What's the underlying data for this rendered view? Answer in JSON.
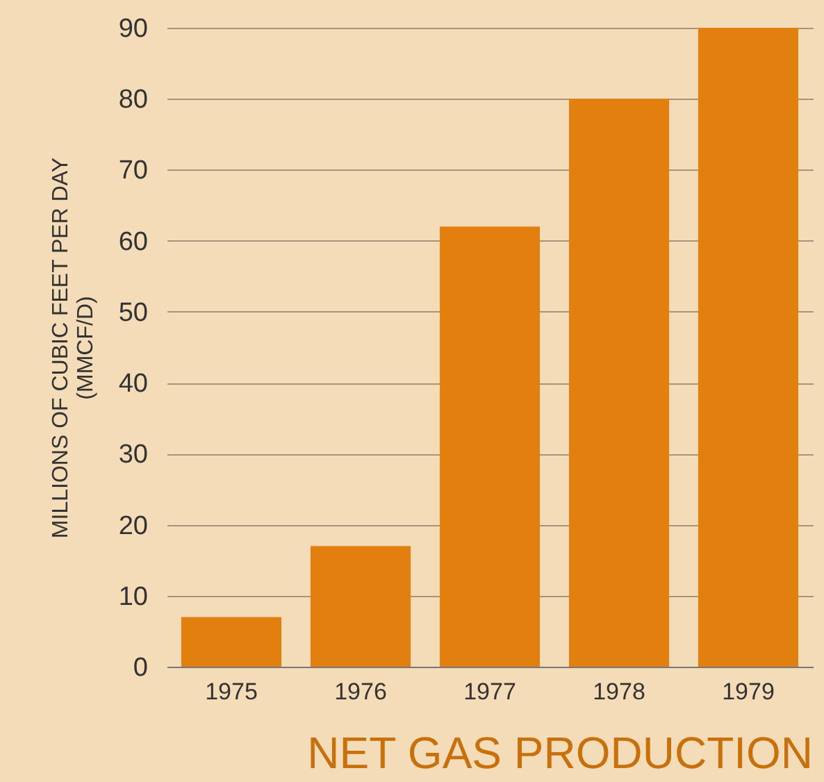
{
  "chart_data": {
    "type": "bar",
    "title": "NET GAS PRODUCTION",
    "ylabel": "MILLIONS OF CUBIC FEET PER DAY\n(MMCF/D)",
    "categories": [
      "1975",
      "1976",
      "1977",
      "1978",
      "1979"
    ],
    "values": [
      7,
      17,
      62,
      80,
      90
    ],
    "color": "#e2800f",
    "ylim": [
      0,
      90
    ],
    "yticks": [
      0,
      10,
      20,
      30,
      40,
      50,
      60,
      70,
      80,
      90
    ],
    "grid": "y"
  }
}
